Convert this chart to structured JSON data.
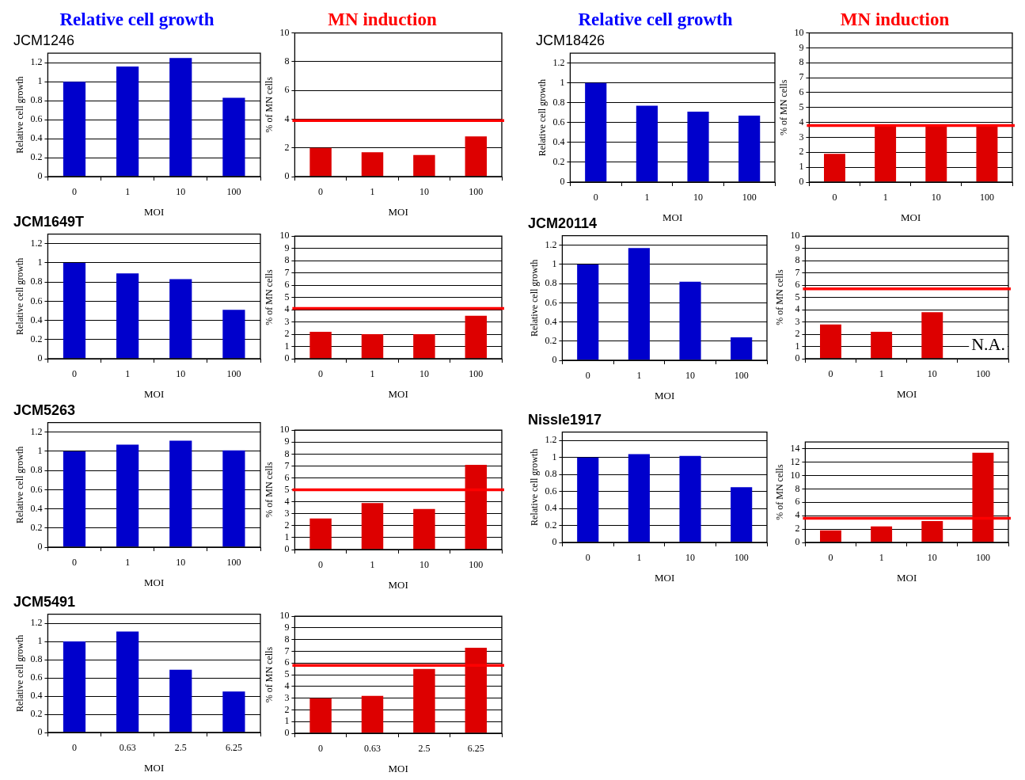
{
  "chart_data": [
    {
      "type": "bar",
      "title": "Relative cell growth",
      "subtitle": "JCM1246",
      "xlabel": "MOI",
      "ylabel": "Relative cell growth",
      "categories": [
        "0",
        "1",
        "10",
        "100"
      ],
      "values": [
        1.0,
        1.16,
        1.25,
        0.83
      ],
      "color": "#0000cc",
      "ylim": [
        0,
        1.3
      ],
      "yticks": [
        0,
        0.2,
        0.4,
        0.6,
        0.8,
        1,
        1.2
      ],
      "grid": "y"
    },
    {
      "type": "bar",
      "title": "MN induction",
      "xlabel": "MOI",
      "ylabel": "% of MN cells",
      "categories": [
        "0",
        "1",
        "10",
        "100"
      ],
      "values": [
        2.0,
        1.7,
        1.5,
        2.8
      ],
      "color": "#dd0000",
      "ylim": [
        0,
        10
      ],
      "yticks": [
        0,
        2,
        4,
        6,
        8,
        10
      ],
      "grid": "y",
      "ref_lines": [
        {
          "axis": "y",
          "value": 3.9,
          "color": "#ff0000"
        }
      ]
    },
    {
      "type": "bar",
      "title": "Relative cell growth",
      "subtitle": "JCM18426",
      "xlabel": "MOI",
      "ylabel": "Relative cell growth",
      "categories": [
        "0",
        "1",
        "10",
        "100"
      ],
      "values": [
        1.0,
        0.77,
        0.71,
        0.67
      ],
      "color": "#0000cc",
      "ylim": [
        0,
        1.3
      ],
      "yticks": [
        0,
        0.2,
        0.4,
        0.6,
        0.8,
        1,
        1.2
      ],
      "grid": "y"
    },
    {
      "type": "bar",
      "title": "MN induction",
      "xlabel": "MOI",
      "ylabel": "% of MN cells",
      "categories": [
        "0",
        "1",
        "10",
        "100"
      ],
      "values": [
        1.9,
        3.8,
        3.8,
        3.8
      ],
      "color": "#dd0000",
      "ylim": [
        0,
        10
      ],
      "yticks": [
        0,
        1,
        2,
        3,
        4,
        5,
        6,
        7,
        8,
        9,
        10
      ],
      "grid": "y",
      "ref_lines": [
        {
          "axis": "y",
          "value": 3.8,
          "color": "#ff0000"
        }
      ]
    },
    {
      "type": "bar",
      "title": "JCM1649T",
      "xlabel": "MOI",
      "ylabel": "Relative cell growth",
      "categories": [
        "0",
        "1",
        "10",
        "100"
      ],
      "values": [
        1.0,
        0.89,
        0.83,
        0.51
      ],
      "color": "#0000cc",
      "ylim": [
        0,
        1.3
      ],
      "yticks": [
        0,
        0.2,
        0.4,
        0.6,
        0.8,
        1,
        1.2
      ],
      "grid": "y"
    },
    {
      "type": "bar",
      "xlabel": "MOI",
      "ylabel": "% of MN cells",
      "categories": [
        "0",
        "1",
        "10",
        "100"
      ],
      "values": [
        2.2,
        2.0,
        2.0,
        3.5
      ],
      "color": "#dd0000",
      "ylim": [
        0,
        10
      ],
      "yticks": [
        0,
        1,
        2,
        3,
        4,
        5,
        6,
        7,
        8,
        9,
        10
      ],
      "grid": "y",
      "ref_lines": [
        {
          "axis": "y",
          "value": 4.1,
          "color": "#ff0000"
        }
      ]
    },
    {
      "type": "bar",
      "title": "JCM20114",
      "xlabel": "MOI",
      "ylabel": "Relative cell growth",
      "categories": [
        "0",
        "1",
        "10",
        "100"
      ],
      "values": [
        1.0,
        1.17,
        0.82,
        0.24
      ],
      "color": "#0000cc",
      "ylim": [
        0,
        1.3
      ],
      "yticks": [
        0,
        0.2,
        0.4,
        0.6,
        0.8,
        1,
        1.2
      ],
      "grid": "y"
    },
    {
      "type": "bar",
      "xlabel": "MOI",
      "ylabel": "% of MN cells",
      "categories": [
        "0",
        "1",
        "10",
        "100"
      ],
      "values": [
        2.8,
        2.2,
        3.8,
        null
      ],
      "color": "#dd0000",
      "ylim": [
        0,
        10
      ],
      "yticks": [
        0,
        1,
        2,
        3,
        4,
        5,
        6,
        7,
        8,
        9,
        10
      ],
      "grid": "y",
      "ref_lines": [
        {
          "axis": "y",
          "value": 5.7,
          "color": "#ff0000"
        }
      ],
      "annotations": [
        "N.A."
      ]
    },
    {
      "type": "bar",
      "title": "JCM5263",
      "xlabel": "MOI",
      "ylabel": "Relative cell growth",
      "categories": [
        "0",
        "1",
        "10",
        "100"
      ],
      "values": [
        1.0,
        1.07,
        1.11,
        1.01
      ],
      "color": "#0000cc",
      "ylim": [
        0,
        1.3
      ],
      "yticks": [
        0,
        0.2,
        0.4,
        0.6,
        0.8,
        1,
        1.2
      ],
      "grid": "y"
    },
    {
      "type": "bar",
      "xlabel": "MOI",
      "ylabel": "% of MN cells",
      "categories": [
        "0",
        "1",
        "10",
        "100"
      ],
      "values": [
        2.6,
        3.9,
        3.4,
        7.1
      ],
      "color": "#dd0000",
      "ylim": [
        0,
        10
      ],
      "yticks": [
        0,
        1,
        2,
        3,
        4,
        5,
        6,
        7,
        8,
        9,
        10
      ],
      "grid": "y",
      "ref_lines": [
        {
          "axis": "y",
          "value": 5.0,
          "color": "#ff0000"
        }
      ]
    },
    {
      "type": "bar",
      "title": "Nissle1917",
      "xlabel": "MOI",
      "ylabel": "Relative cell growth",
      "categories": [
        "0",
        "1",
        "10",
        "100"
      ],
      "values": [
        1.0,
        1.04,
        1.02,
        0.65
      ],
      "color": "#0000cc",
      "ylim": [
        0,
        1.3
      ],
      "yticks": [
        0,
        0.2,
        0.4,
        0.6,
        0.8,
        1,
        1.2
      ],
      "grid": "y"
    },
    {
      "type": "bar",
      "xlabel": "MOI",
      "ylabel": "% of MN cells",
      "categories": [
        "0",
        "1",
        "10",
        "100"
      ],
      "values": [
        1.8,
        2.4,
        3.2,
        13.4
      ],
      "color": "#dd0000",
      "ylim": [
        0,
        15
      ],
      "yticks": [
        0,
        2,
        4,
        6,
        8,
        10,
        12,
        14
      ],
      "grid": "y",
      "ref_lines": [
        {
          "axis": "y",
          "value": 3.6,
          "color": "#ff0000"
        }
      ]
    },
    {
      "type": "bar",
      "title": "JCM5491",
      "xlabel": "MOI",
      "ylabel": "Relative cell growth",
      "categories": [
        "0",
        "0.63",
        "2.5",
        "6.25"
      ],
      "values": [
        1.0,
        1.11,
        0.69,
        0.45
      ],
      "color": "#0000cc",
      "ylim": [
        0,
        1.3
      ],
      "yticks": [
        0,
        0.2,
        0.4,
        0.6,
        0.8,
        1,
        1.2
      ],
      "grid": "y"
    },
    {
      "type": "bar",
      "xlabel": "MOI",
      "ylabel": "% of MN cells",
      "categories": [
        "0",
        "0.63",
        "2.5",
        "6.25"
      ],
      "values": [
        3.0,
        3.2,
        5.5,
        7.3
      ],
      "color": "#dd0000",
      "ylim": [
        0,
        10
      ],
      "yticks": [
        0,
        1,
        2,
        3,
        4,
        5,
        6,
        7,
        8,
        9,
        10
      ],
      "grid": "y",
      "ref_lines": [
        {
          "axis": "y",
          "value": 5.8,
          "color": "#ff0000"
        }
      ]
    }
  ]
}
